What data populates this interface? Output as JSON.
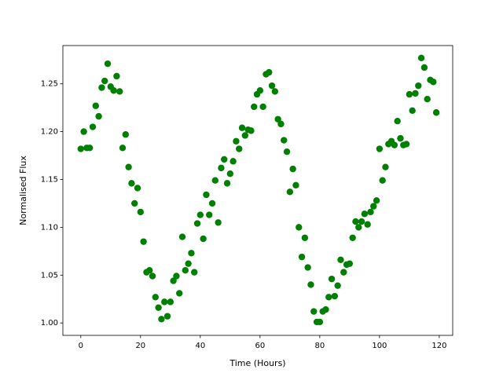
{
  "chart_data": {
    "type": "scatter",
    "xlabel": "Time (Hours)",
    "ylabel": "Normalised Flux",
    "color": "#008000",
    "x": [
      0,
      1,
      2,
      3,
      4,
      5,
      6,
      7,
      8,
      9,
      10,
      11,
      12,
      13,
      14,
      15,
      16,
      17,
      18,
      19,
      20,
      21,
      22,
      23,
      24,
      25,
      26,
      27,
      28,
      29,
      30,
      31,
      32,
      33,
      34,
      35,
      36,
      37,
      38,
      39,
      40,
      41,
      42,
      43,
      44,
      45,
      46,
      47,
      48,
      49,
      50,
      51,
      52,
      53,
      54,
      55,
      56,
      57,
      58,
      59,
      60,
      61,
      62,
      63,
      64,
      65,
      66,
      67,
      68,
      69,
      70,
      71,
      72,
      73,
      74,
      75,
      76,
      77,
      78,
      79,
      80,
      81,
      82,
      83,
      84,
      85,
      86,
      87,
      88,
      89,
      90,
      91,
      92,
      93,
      94,
      95,
      96,
      97,
      98,
      99,
      100,
      101,
      102,
      103,
      104,
      105,
      106,
      107,
      108,
      109,
      110,
      111,
      112,
      113,
      114,
      115,
      116,
      117,
      118,
      119
    ],
    "values": [
      1.182,
      1.2,
      1.183,
      1.183,
      1.205,
      1.227,
      1.216,
      1.246,
      1.253,
      1.271,
      1.247,
      1.243,
      1.258,
      1.242,
      1.183,
      1.197,
      1.163,
      1.146,
      1.125,
      1.141,
      1.116,
      1.085,
      1.053,
      1.055,
      1.049,
      1.027,
      1.016,
      1.004,
      1.022,
      1.007,
      1.022,
      1.044,
      1.049,
      1.031,
      1.09,
      1.055,
      1.062,
      1.073,
      1.053,
      1.104,
      1.113,
      1.088,
      1.134,
      1.113,
      1.125,
      1.149,
      1.105,
      1.162,
      1.171,
      1.146,
      1.156,
      1.169,
      1.19,
      1.182,
      1.204,
      1.196,
      1.202,
      1.201,
      1.226,
      1.239,
      1.243,
      1.226,
      1.26,
      1.262,
      1.248,
      1.242,
      1.213,
      1.208,
      1.191,
      1.179,
      1.137,
      1.161,
      1.144,
      1.1,
      1.069,
      1.089,
      1.058,
      1.04,
      1.012,
      1.001,
      1.001,
      1.012,
      1.014,
      1.027,
      1.046,
      1.028,
      1.039,
      1.066,
      1.053,
      1.061,
      1.062,
      1.089,
      1.106,
      1.1,
      1.106,
      1.114,
      1.103,
      1.116,
      1.122,
      1.128,
      1.182,
      1.149,
      1.163,
      1.187,
      1.19,
      1.186,
      1.211,
      1.193,
      1.186,
      1.187,
      1.239,
      1.222,
      1.24,
      1.248,
      1.277,
      1.267,
      1.234,
      1.254,
      1.252,
      1.22
    ],
    "xlim": [
      -6,
      124.5
    ],
    "ylim": [
      0.987,
      1.29
    ],
    "xticks": [
      0,
      20,
      40,
      60,
      80,
      100,
      120
    ],
    "yticks": [
      {
        "value": 1,
        "label": "1.00"
      },
      1.05,
      {
        "value": 1.1,
        "label": "1.10"
      },
      1.15,
      {
        "value": 1.2,
        "label": "1.20"
      },
      1.25
    ],
    "grid": false
  }
}
